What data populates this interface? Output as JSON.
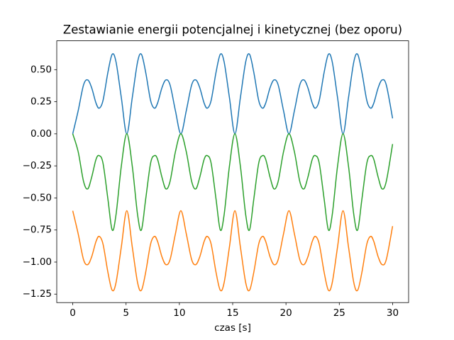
{
  "chart_data": {
    "type": "line",
    "title": "Zestawianie energii potencjalnej i kinetycznej (bez oporu)",
    "x_label": "czas [s]",
    "x": [
      0,
      0.51,
      1.01,
      1.4,
      1.77,
      2.18,
      2.48,
      2.84,
      3.3,
      3.7,
      4.06,
      4.56,
      5.07,
      5.58,
      6.08,
      6.44,
      6.84,
      7.3,
      7.66,
      7.96,
      8.37,
      8.74,
      9.13,
      9.63,
      10.14,
      10.65,
      11.15,
      11.54,
      11.91,
      12.32,
      12.62,
      12.98,
      13.44,
      13.84,
      14.2,
      14.7,
      15.21,
      15.72,
      16.22,
      16.58,
      16.98,
      17.44,
      17.8,
      18.1,
      18.51,
      18.88,
      19.27,
      19.77,
      20.28,
      20.79,
      21.29,
      21.68,
      22.05,
      22.46,
      22.76,
      23.12,
      23.58,
      23.98,
      24.34,
      24.84,
      25.35,
      25.86,
      26.36,
      26.72,
      27.12,
      27.58,
      27.94,
      28.24,
      28.65,
      29.02,
      29.41,
      30
    ],
    "series": [
      {
        "color": "#1f77b4",
        "values": [
          0,
          0.18,
          0.38,
          0.42,
          0.36,
          0.24,
          0.2,
          0.26,
          0.48,
          0.62,
          0.56,
          0.28,
          0,
          0.28,
          0.56,
          0.62,
          0.48,
          0.26,
          0.2,
          0.24,
          0.36,
          0.42,
          0.38,
          0.18,
          0,
          0.18,
          0.38,
          0.42,
          0.36,
          0.24,
          0.2,
          0.26,
          0.48,
          0.62,
          0.56,
          0.28,
          0,
          0.28,
          0.56,
          0.62,
          0.48,
          0.26,
          0.2,
          0.24,
          0.36,
          0.42,
          0.38,
          0.18,
          0,
          0.18,
          0.38,
          0.42,
          0.36,
          0.24,
          0.2,
          0.26,
          0.48,
          0.62,
          0.56,
          0.28,
          0,
          0.28,
          0.56,
          0.62,
          0.48,
          0.26,
          0.2,
          0.24,
          0.36,
          0.42,
          0.38,
          0.12
        ]
      },
      {
        "color": "#ff7f0e",
        "values": [
          -0.6,
          -0.78,
          -0.98,
          -1.02,
          -0.96,
          -0.84,
          -0.8,
          -0.86,
          -1.08,
          -1.22,
          -1.16,
          -0.88,
          -0.6,
          -0.88,
          -1.16,
          -1.22,
          -1.08,
          -0.86,
          -0.8,
          -0.84,
          -0.96,
          -1.02,
          -0.98,
          -0.78,
          -0.6,
          -0.78,
          -0.98,
          -1.02,
          -0.96,
          -0.84,
          -0.8,
          -0.86,
          -1.08,
          -1.22,
          -1.16,
          -0.88,
          -0.6,
          -0.88,
          -1.16,
          -1.22,
          -1.08,
          -0.86,
          -0.8,
          -0.84,
          -0.96,
          -1.02,
          -0.98,
          -0.78,
          -0.6,
          -0.78,
          -0.98,
          -1.02,
          -0.96,
          -0.84,
          -0.8,
          -0.86,
          -1.08,
          -1.22,
          -1.16,
          -0.88,
          -0.6,
          -0.88,
          -1.16,
          -1.22,
          -1.08,
          -0.86,
          -0.8,
          -0.84,
          -0.96,
          -1.02,
          -0.98,
          -0.72
        ]
      },
      {
        "color": "#2ca02c",
        "values": [
          0,
          -0.14,
          -0.37,
          -0.43,
          -0.34,
          -0.2,
          -0.17,
          -0.23,
          -0.51,
          -0.75,
          -0.63,
          -0.25,
          0,
          -0.25,
          -0.63,
          -0.75,
          -0.51,
          -0.23,
          -0.17,
          -0.2,
          -0.34,
          -0.43,
          -0.37,
          -0.14,
          0,
          -0.14,
          -0.37,
          -0.43,
          -0.34,
          -0.2,
          -0.17,
          -0.23,
          -0.51,
          -0.75,
          -0.63,
          -0.25,
          0,
          -0.25,
          -0.63,
          -0.75,
          -0.51,
          -0.23,
          -0.17,
          -0.2,
          -0.34,
          -0.43,
          -0.37,
          -0.14,
          0,
          -0.14,
          -0.37,
          -0.43,
          -0.34,
          -0.2,
          -0.17,
          -0.23,
          -0.51,
          -0.75,
          -0.63,
          -0.25,
          0,
          -0.25,
          -0.63,
          -0.75,
          -0.51,
          -0.23,
          -0.17,
          -0.2,
          -0.34,
          -0.43,
          -0.37,
          -0.08
        ]
      }
    ],
    "xlim": [
      -1.5,
      31.5
    ],
    "xticks": [
      0,
      5,
      10,
      15,
      20,
      25,
      30
    ],
    "ylim": [
      -1.316,
      0.725
    ],
    "yticks": [
      {
        "value": -1.25,
        "label": "−1.25"
      },
      {
        "value": -1,
        "label": "−1.00"
      },
      {
        "value": -0.75,
        "label": "−0.75"
      },
      {
        "value": -0.5,
        "label": "−0.50"
      },
      {
        "value": -0.25,
        "label": "−0.25"
      },
      {
        "value": 0,
        "label": "0.00"
      },
      {
        "value": 0.25,
        "label": "0.25"
      },
      {
        "value": 0.5,
        "label": "0.50"
      }
    ],
    "grid": false
  }
}
